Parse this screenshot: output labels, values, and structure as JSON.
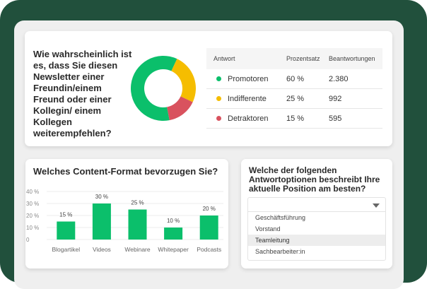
{
  "nps": {
    "question": "Wie wahrscheinlich ist es, dass Sie diesen Newsletter einer Freundin/einem Freund oder einer Kollegin/ einem Kollegen weiterempfehlen?",
    "table": {
      "headers": [
        "Antwort",
        "Prozentsatz",
        "Beantwortungen"
      ],
      "rows": [
        {
          "label": "Promotoren",
          "percent": "60 %",
          "count": "2.380",
          "color": "#0bbf6b"
        },
        {
          "label": "Indifferente",
          "percent": "25 %",
          "count": "992",
          "color": "#f5bd00"
        },
        {
          "label": "Detraktoren",
          "percent": "15 %",
          "count": "595",
          "color": "#d9525e"
        }
      ]
    }
  },
  "chart_data": [
    {
      "type": "pie",
      "donut": true,
      "categories": [
        "Promotoren",
        "Indifferente",
        "Detraktoren"
      ],
      "values": [
        60,
        25,
        15
      ],
      "colors": [
        "#0bbf6b",
        "#f5bd00",
        "#d9525e"
      ]
    },
    {
      "type": "bar",
      "title": "Welches Content-Format bevorzugen Sie?",
      "categories": [
        "Blogartikel",
        "Videos",
        "Webinare",
        "Whitepaper",
        "Podcasts"
      ],
      "values": [
        15,
        30,
        25,
        10,
        20
      ],
      "data_labels": [
        "15 %",
        "30 %",
        "25 %",
        "10 %",
        "20 %"
      ],
      "yticks": [
        "0",
        "10 %",
        "20 %",
        "30 %",
        "40 %"
      ],
      "ylim": [
        0,
        40
      ],
      "grid": true,
      "color": "#0bbf6b"
    }
  ],
  "position": {
    "question": "Welche der folgenden Antwortoptionen beschreibt Ihre aktuelle Position am besten?",
    "options": [
      "Geschäftsführung",
      "Vorstand",
      "Teamleitung",
      "Sachbearbeiter:in"
    ],
    "highlighted": "Teamleitung"
  }
}
